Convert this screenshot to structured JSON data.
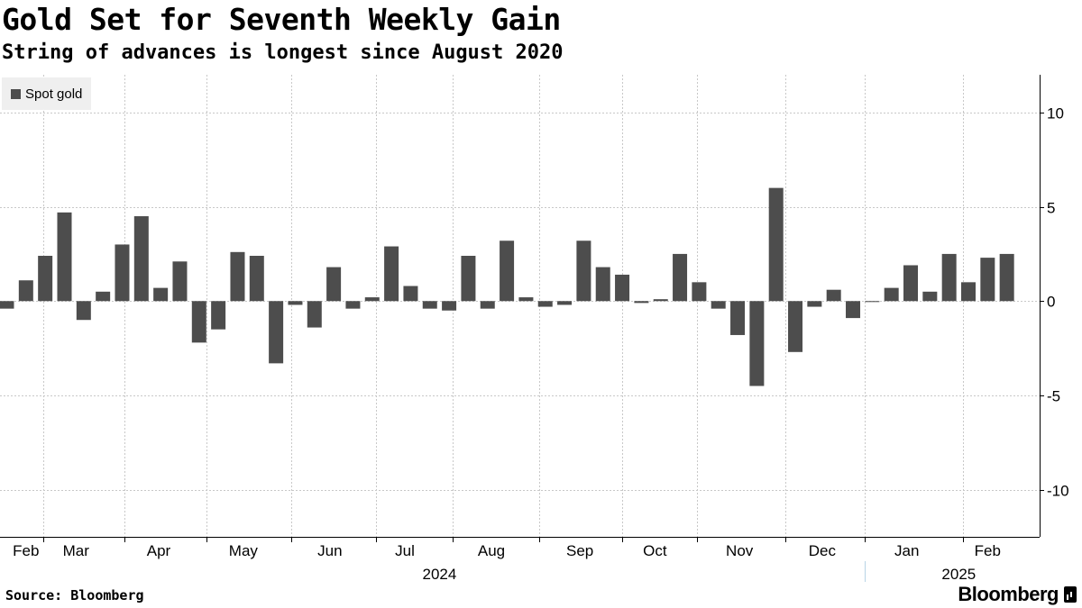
{
  "header": {
    "title": "Gold Set for Seventh Weekly Gain",
    "subtitle": "String of advances is longest since August 2020"
  },
  "footer": {
    "source": "Source: Bloomberg",
    "brand": "Bloomberg"
  },
  "colors": {
    "bar": "#4d4d4d",
    "grid": "#c8c8c8",
    "legend_bg": "#efefef"
  },
  "chart_data": {
    "type": "bar",
    "series": [
      {
        "name": "Spot gold",
        "values": [
          -0.4,
          1.1,
          2.4,
          4.7,
          -1.0,
          0.5,
          3.0,
          4.5,
          0.7,
          2.1,
          -2.2,
          -1.5,
          2.6,
          2.4,
          -3.3,
          -0.2,
          -1.4,
          1.8,
          -0.4,
          0.2,
          2.9,
          0.8,
          -0.4,
          -0.5,
          2.4,
          -0.4,
          3.2,
          0.2,
          -0.3,
          -0.2,
          3.2,
          1.8,
          1.4,
          -0.1,
          0.1,
          2.5,
          1.0,
          -0.4,
          -1.8,
          -4.5,
          6.0,
          -2.7,
          -0.3,
          0.6,
          -0.9,
          -0.05,
          0.7,
          1.9,
          0.5,
          2.5,
          1.0,
          2.3,
          2.5
        ]
      }
    ],
    "ylim": [
      -12.5,
      12
    ],
    "yticks": [
      10,
      5,
      0,
      -5,
      -10
    ],
    "ytick_labels": [
      "10",
      "5",
      "0",
      "-5",
      "-10"
    ],
    "xaxis": {
      "months": [
        {
          "label": "Feb",
          "week": 1
        },
        {
          "label": "Mar",
          "week": 3.6
        },
        {
          "label": "Apr",
          "week": 7.9
        },
        {
          "label": "May",
          "week": 12.3
        },
        {
          "label": "Jun",
          "week": 16.8
        },
        {
          "label": "Jul",
          "week": 20.7
        },
        {
          "label": "Aug",
          "week": 25.2
        },
        {
          "label": "Sep",
          "week": 29.8
        },
        {
          "label": "Oct",
          "week": 33.7
        },
        {
          "label": "Nov",
          "week": 38.1
        },
        {
          "label": "Dec",
          "week": 42.4
        },
        {
          "label": "Jan",
          "week": 46.8
        },
        {
          "label": "Feb",
          "week": 51.0
        }
      ],
      "month_boundaries": [
        1.9,
        6.1,
        10.4,
        14.8,
        19.2,
        23.2,
        27.7,
        32.0,
        35.9,
        40.5,
        44.6,
        49.7
      ],
      "years": [
        {
          "label": "2024",
          "center_week": 22.5
        },
        {
          "label": "2025",
          "center_week": 49.5
        }
      ],
      "year_divider_week": 44.6
    },
    "grid": true,
    "legend_position": "top-left"
  }
}
